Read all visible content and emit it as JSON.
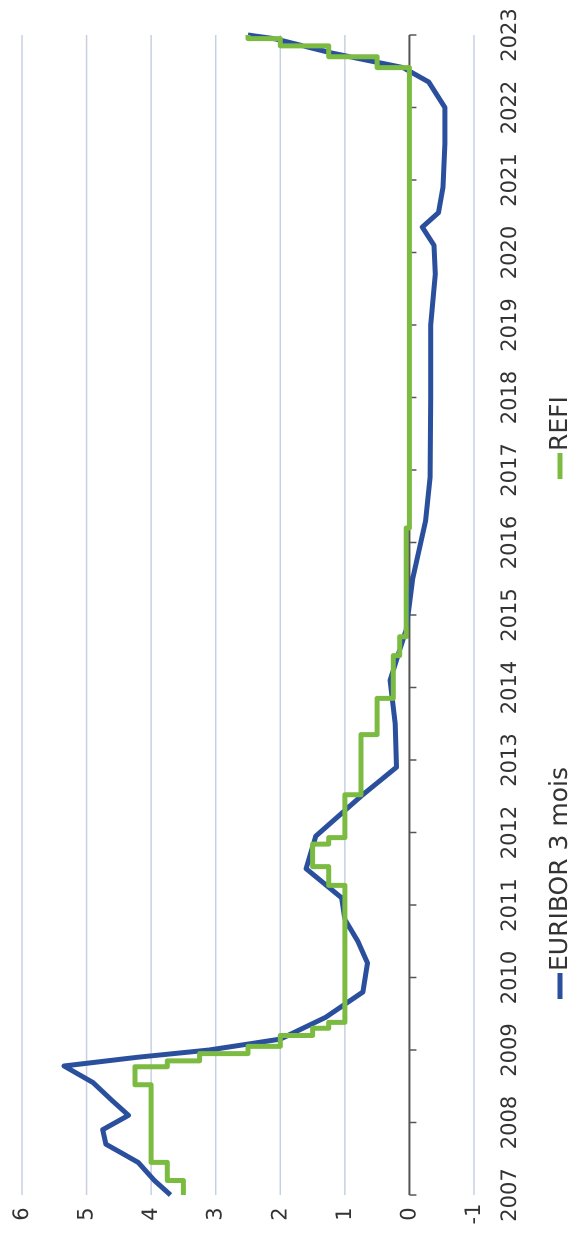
{
  "chart_data": {
    "type": "line",
    "series": [
      {
        "name": "EURIBOR 3 mois",
        "color": "#2a4f9c",
        "x": [
          2007.0,
          2007.2,
          2007.45,
          2007.7,
          2007.9,
          2008.1,
          2008.3,
          2008.55,
          2008.78,
          2008.9,
          2009.0,
          2009.15,
          2009.45,
          2009.8,
          2010.2,
          2010.5,
          2010.8,
          2011.1,
          2011.5,
          2011.95,
          2012.5,
          2012.9,
          2013.5,
          2014.1,
          2014.8,
          2015.5,
          2016.3,
          2016.9,
          2018.0,
          2019.0,
          2019.7,
          2020.1,
          2020.35,
          2020.55,
          2020.9,
          2021.5,
          2022.0,
          2022.35,
          2022.55,
          2022.75,
          2022.95,
          2023.0
        ],
        "values": [
          3.7,
          3.95,
          4.2,
          4.7,
          4.75,
          4.35,
          4.6,
          4.9,
          5.35,
          4.2,
          3.1,
          2.0,
          1.3,
          0.72,
          0.65,
          0.8,
          1.0,
          1.05,
          1.6,
          1.45,
          0.75,
          0.2,
          0.22,
          0.3,
          0.05,
          -0.05,
          -0.25,
          -0.32,
          -0.33,
          -0.33,
          -0.4,
          -0.38,
          -0.2,
          -0.45,
          -0.52,
          -0.55,
          -0.55,
          -0.3,
          0.1,
          1.2,
          2.1,
          2.5
        ]
      },
      {
        "name": "REFI",
        "color": "#7cbb42",
        "x": [
          2007.0,
          2007.2,
          2007.2,
          2007.45,
          2007.45,
          2008.52,
          2008.52,
          2008.77,
          2008.77,
          2008.85,
          2008.85,
          2008.95,
          2008.95,
          2009.05,
          2009.05,
          2009.2,
          2009.2,
          2009.3,
          2009.3,
          2009.38,
          2009.38,
          2011.27,
          2011.27,
          2011.53,
          2011.53,
          2011.84,
          2011.84,
          2011.93,
          2011.93,
          2012.52,
          2012.52,
          2013.35,
          2013.35,
          2013.85,
          2013.85,
          2014.44,
          2014.44,
          2014.7,
          2014.7,
          2016.2,
          2016.2,
          2022.55,
          2022.55,
          2022.7,
          2022.7,
          2022.85,
          2022.85,
          2022.95,
          2022.95,
          2023.0
        ],
        "values": [
          3.5,
          3.5,
          3.75,
          3.75,
          4.0,
          4.0,
          4.25,
          4.25,
          3.75,
          3.75,
          3.25,
          3.25,
          2.5,
          2.5,
          2.0,
          2.0,
          1.5,
          1.5,
          1.25,
          1.25,
          1.0,
          1.0,
          1.25,
          1.25,
          1.5,
          1.5,
          1.25,
          1.25,
          1.0,
          1.0,
          0.75,
          0.75,
          0.5,
          0.5,
          0.25,
          0.25,
          0.15,
          0.15,
          0.05,
          0.05,
          0.0,
          0.0,
          0.5,
          0.5,
          1.25,
          1.25,
          2.0,
          2.0,
          2.5,
          2.5
        ]
      }
    ],
    "xlim": [
      2007,
      2023
    ],
    "xticks": [
      2007,
      2008,
      2009,
      2010,
      2011,
      2012,
      2013,
      2014,
      2015,
      2016,
      2017,
      2018,
      2019,
      2020,
      2021,
      2022,
      2023
    ],
    "ylim": [
      -1,
      6
    ],
    "yticks": [
      -1,
      0,
      1,
      2,
      3,
      4,
      5,
      6
    ],
    "grid": true,
    "legend": "bottom"
  }
}
